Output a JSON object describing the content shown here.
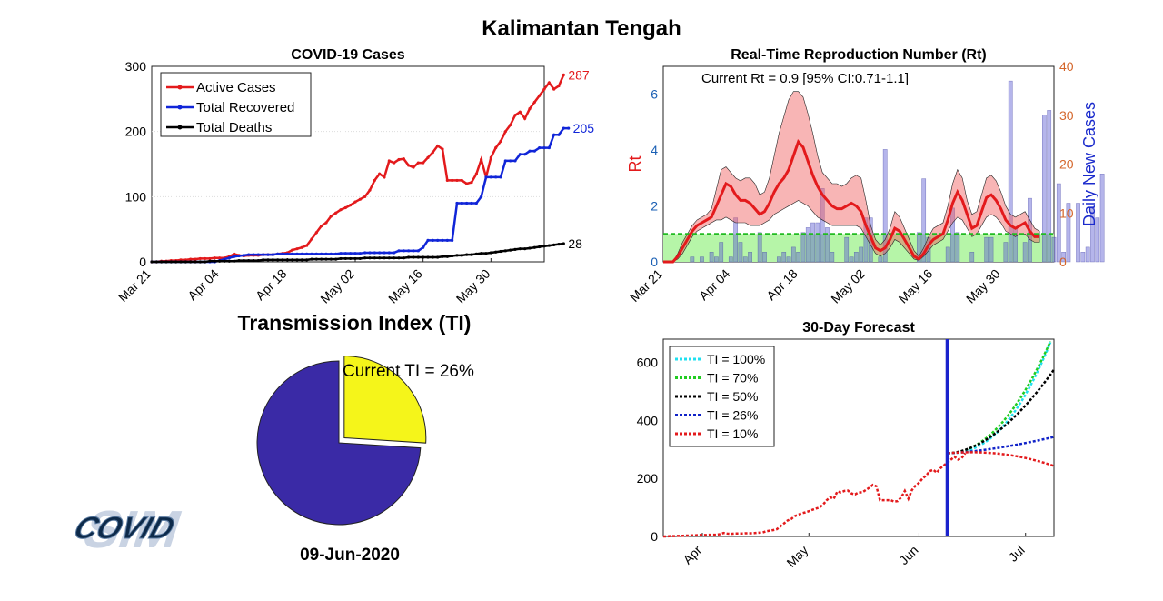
{
  "page": {
    "title": "Kalimantan Tengah",
    "date": "09-Jun-2020"
  },
  "logo": {
    "text": "COVID",
    "name": "covid-sim-logo"
  },
  "chart_data": [
    {
      "type": "line",
      "title": "COVID-19 Cases",
      "xlabel": "",
      "ylabel": "",
      "xlim": [
        "2020-03-21",
        "2020-06-10"
      ],
      "ylim": [
        0,
        300
      ],
      "x_ticks": [
        "Mar 21",
        "Apr 04",
        "Apr 18",
        "May 02",
        "May 16",
        "May 30"
      ],
      "y_ticks": [
        0,
        100,
        200,
        300
      ],
      "legend": "top-left",
      "grid": true,
      "start_date": "2020-03-21",
      "series": [
        {
          "name": "Active Cases",
          "color": "#e31a1c",
          "end_label": "287",
          "values": [
            0,
            0,
            1,
            1,
            2,
            2,
            3,
            3,
            4,
            4,
            5,
            5,
            5,
            6,
            6,
            6,
            8,
            12,
            10,
            9,
            10,
            10,
            10,
            11,
            11,
            11,
            12,
            13,
            14,
            18,
            20,
            22,
            25,
            35,
            45,
            55,
            60,
            70,
            75,
            80,
            83,
            87,
            92,
            96,
            100,
            110,
            125,
            135,
            130,
            155,
            152,
            157,
            158,
            148,
            145,
            152,
            152,
            160,
            168,
            178,
            173,
            125,
            125,
            125,
            125,
            120,
            122,
            135,
            157,
            130,
            160,
            175,
            185,
            200,
            210,
            225,
            230,
            220,
            235,
            245,
            255,
            265,
            275,
            265,
            270,
            287
          ],
          "n_days": 0
        },
        {
          "name": "Total Recovered",
          "color": "#1025d8",
          "end_label": "205",
          "values": [
            0,
            0,
            0,
            0,
            0,
            0,
            0,
            0,
            0,
            0,
            0,
            0,
            0,
            0,
            2,
            4,
            6,
            8,
            9,
            10,
            11,
            11,
            11,
            11,
            11,
            11,
            12,
            12,
            12,
            12,
            12,
            12,
            12,
            12,
            12,
            12,
            12,
            12,
            12,
            13,
            13,
            13,
            13,
            13,
            14,
            14,
            14,
            14,
            14,
            14,
            14,
            17,
            17,
            17,
            17,
            17,
            22,
            33,
            33,
            33,
            33,
            33,
            33,
            90,
            90,
            90,
            90,
            90,
            100,
            130,
            130,
            130,
            130,
            155,
            155,
            155,
            165,
            165,
            170,
            170,
            175,
            175,
            175,
            195,
            195,
            205,
            205
          ]
        },
        {
          "name": "Total Deaths",
          "color": "#000000",
          "end_label": "28",
          "values": [
            0,
            0,
            0,
            0,
            0,
            0,
            0,
            0,
            0,
            0,
            0,
            0,
            1,
            1,
            1,
            1,
            1,
            1,
            2,
            2,
            2,
            2,
            2,
            3,
            3,
            3,
            3,
            3,
            3,
            3,
            3,
            3,
            3,
            4,
            4,
            4,
            4,
            4,
            4,
            5,
            5,
            5,
            5,
            5,
            6,
            6,
            6,
            6,
            6,
            6,
            6,
            6,
            6,
            7,
            7,
            7,
            7,
            7,
            7,
            7,
            8,
            8,
            9,
            10,
            10,
            11,
            11,
            12,
            13,
            13,
            14,
            15,
            16,
            17,
            18,
            19,
            20,
            20,
            21,
            22,
            23,
            24,
            25,
            26,
            27,
            28
          ]
        }
      ]
    },
    {
      "type": "line",
      "title": "Real-Time Reproduction Number (Rt)",
      "annotation": "Current Rt = 0.9 [95% CI:0.71-1.1]",
      "ylabel": "Rt",
      "y2label": "Daily New Cases",
      "xlim": [
        "2020-03-21",
        "2020-06-10"
      ],
      "ylim": [
        0,
        7
      ],
      "y2lim": [
        0,
        40
      ],
      "x_ticks": [
        "Mar 21",
        "Apr 04",
        "Apr 18",
        "May 02",
        "May 16",
        "May 30"
      ],
      "y_ticks": [
        0,
        2,
        4,
        6
      ],
      "y2_ticks": [
        0,
        10,
        20,
        30,
        40
      ],
      "threshold": 1,
      "rt": [
        0,
        0,
        0,
        0.2,
        0.5,
        0.8,
        1.1,
        1.3,
        1.4,
        1.5,
        1.6,
        2.0,
        2.4,
        2.8,
        2.7,
        2.4,
        2.2,
        2.2,
        2.1,
        1.9,
        1.7,
        1.8,
        2.1,
        2.5,
        2.8,
        3.0,
        3.3,
        3.8,
        4.3,
        4.1,
        3.6,
        3.1,
        2.7,
        2.4,
        2.2,
        2.0,
        1.9,
        1.9,
        2.0,
        2.1,
        2.0,
        1.8,
        1.3,
        0.9,
        0.5,
        0.4,
        0.5,
        0.8,
        1.2,
        1.1,
        0.8,
        0.5,
        0.2,
        0.1,
        0.3,
        0.6,
        0.8,
        0.9,
        1.0,
        1.5,
        2.1,
        2.5,
        2.2,
        1.7,
        1.2,
        1.3,
        1.8,
        2.3,
        2.4,
        2.2,
        1.9,
        1.5,
        1.3,
        1.2,
        1.3,
        1.4,
        1.1,
        0.9,
        0.9
      ],
      "rt_low": [
        0,
        0,
        0,
        0.1,
        0.3,
        0.6,
        0.9,
        1.1,
        1.2,
        1.3,
        1.4,
        1.5,
        1.5,
        1.6,
        1.5,
        1.4,
        1.4,
        1.4,
        1.3,
        1.3,
        1.3,
        1.4,
        1.5,
        1.7,
        1.8,
        1.9,
        2.0,
        2.1,
        2.2,
        2.1,
        2.0,
        1.8,
        1.6,
        1.5,
        1.4,
        1.3,
        1.3,
        1.3,
        1.3,
        1.3,
        1.3,
        1.2,
        0.9,
        0.6,
        0.3,
        0.2,
        0.3,
        0.5,
        0.8,
        0.7,
        0.5,
        0.3,
        0.1,
        0.05,
        0.2,
        0.4,
        0.6,
        0.7,
        0.8,
        1.1,
        1.4,
        1.6,
        1.5,
        1.2,
        0.9,
        1.0,
        1.3,
        1.6,
        1.7,
        1.6,
        1.4,
        1.1,
        1.0,
        0.9,
        1.0,
        1.0,
        0.8,
        0.7,
        0.7
      ],
      "rt_high": [
        0,
        0,
        0,
        0.3,
        0.7,
        1.0,
        1.3,
        1.5,
        1.6,
        1.7,
        1.9,
        2.6,
        3.3,
        3.4,
        3.2,
        3.0,
        2.9,
        3.0,
        3.0,
        2.8,
        2.4,
        2.5,
        3.0,
        3.8,
        4.6,
        5.2,
        5.8,
        6.1,
        6.1,
        5.9,
        5.3,
        4.6,
        3.8,
        3.2,
        3.0,
        2.8,
        2.8,
        2.7,
        2.8,
        3.0,
        3.1,
        3.0,
        2.2,
        1.3,
        0.8,
        0.6,
        0.8,
        1.2,
        1.8,
        1.6,
        1.2,
        0.8,
        0.4,
        0.2,
        0.5,
        0.9,
        1.2,
        1.3,
        1.4,
        2.0,
        2.8,
        3.3,
        3.0,
        2.2,
        1.7,
        1.8,
        2.4,
        3.0,
        3.1,
        2.9,
        2.5,
        2.0,
        1.7,
        1.6,
        1.7,
        1.8,
        1.5,
        1.2,
        1.1
      ],
      "daily_cases": [
        0,
        0,
        0,
        0,
        0,
        0,
        1,
        0,
        1,
        0,
        2,
        1,
        4,
        0,
        1,
        9,
        4,
        1,
        2,
        0,
        6,
        2,
        0,
        0,
        1,
        2,
        1,
        3,
        2,
        6,
        7,
        8,
        8,
        15,
        7,
        2,
        0,
        0,
        5,
        1,
        2,
        3,
        9,
        9,
        0,
        1,
        23,
        0,
        0,
        0,
        0,
        0,
        0,
        6,
        17,
        5,
        0,
        0,
        0,
        3,
        11,
        6,
        0,
        0,
        2,
        0,
        0,
        5,
        5,
        0,
        0,
        4,
        37,
        7,
        0,
        4,
        13,
        0,
        0,
        30,
        31,
        5,
        16,
        2,
        12,
        0,
        12,
        2,
        3,
        11,
        9,
        18
      ]
    },
    {
      "type": "pie",
      "title": "Transmission Index (TI)",
      "label": "Current TI = 26%",
      "values": [
        26,
        74
      ],
      "colors": [
        "#f5f51a",
        "#3a2aa6"
      ],
      "explode": [
        1,
        0
      ]
    },
    {
      "type": "line",
      "title": "30-Day Forecast",
      "x_ticks": [
        "Apr",
        "May",
        "Jun",
        "Jul"
      ],
      "y_ticks": [
        0,
        200,
        400,
        600
      ],
      "ylim": [
        0,
        680
      ],
      "xlim": [
        "2020-03-21",
        "2020-07-09"
      ],
      "forecast_start": "2020-06-09",
      "legend": "top-left",
      "history": [
        0,
        0,
        1,
        1,
        2,
        2,
        3,
        3,
        4,
        4,
        5,
        5,
        5,
        6,
        6,
        6,
        8,
        12,
        10,
        9,
        10,
        10,
        10,
        11,
        11,
        11,
        12,
        13,
        14,
        18,
        20,
        22,
        25,
        35,
        45,
        55,
        60,
        70,
        75,
        80,
        83,
        87,
        92,
        96,
        100,
        110,
        125,
        135,
        130,
        155,
        152,
        157,
        158,
        148,
        145,
        152,
        152,
        160,
        168,
        178,
        173,
        125,
        125,
        125,
        125,
        120,
        122,
        135,
        157,
        130,
        160,
        175,
        185,
        200,
        210,
        225,
        230,
        220,
        235,
        245,
        255,
        265,
        275,
        265,
        270,
        287
      ],
      "series": [
        {
          "name": "TI = 100%",
          "color": "#20e0f0",
          "end": 700,
          "k": 2.6
        },
        {
          "name": "TI = 70%",
          "color": "#22cc22",
          "end": 700,
          "k": 2.1
        },
        {
          "name": "TI = 50%",
          "color": "#000000",
          "end": 575,
          "k": 1.6
        },
        {
          "name": "TI = 26%",
          "color": "#1022c8",
          "end": 343,
          "k": 1.0
        },
        {
          "name": "TI = 10%",
          "color": "#e31a1c",
          "end": 243,
          "k": -1
        }
      ]
    }
  ]
}
